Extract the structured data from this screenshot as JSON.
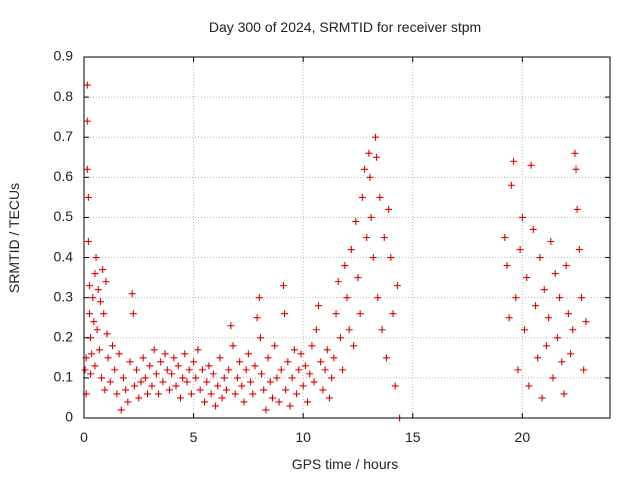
{
  "chart_data": {
    "type": "scatter",
    "title": "Day 300 of 2024, SRMTID for receiver stpm",
    "xlabel": "GPS time / hours",
    "ylabel": "SRMTID / TECUs",
    "xlim": [
      0,
      24
    ],
    "ylim": [
      0,
      0.9
    ],
    "xticks": [
      0,
      5,
      10,
      15,
      20
    ],
    "yticks": [
      0,
      0.1,
      0.2,
      0.3,
      0.4,
      0.5,
      0.6,
      0.7,
      0.8,
      0.9
    ],
    "xtick_labels": [
      "0",
      "5",
      "10",
      "15",
      "20"
    ],
    "ytick_labels": [
      "0",
      "0.1",
      "0.2",
      "0.3",
      "0.4",
      "0.5",
      "0.6",
      "0.7",
      "0.8",
      "0.9"
    ],
    "grid": true,
    "marker": "+",
    "color": "#e00000",
    "series": [
      {
        "name": "SRMTID",
        "points": [
          [
            0.05,
            0.12
          ],
          [
            0.1,
            0.15
          ],
          [
            0.1,
            0.06
          ],
          [
            0.15,
            0.83
          ],
          [
            0.15,
            0.74
          ],
          [
            0.15,
            0.62
          ],
          [
            0.2,
            0.55
          ],
          [
            0.2,
            0.44
          ],
          [
            0.25,
            0.33
          ],
          [
            0.25,
            0.26
          ],
          [
            0.3,
            0.2
          ],
          [
            0.3,
            0.11
          ],
          [
            0.35,
            0.16
          ],
          [
            0.4,
            0.3
          ],
          [
            0.45,
            0.24
          ],
          [
            0.5,
            0.36
          ],
          [
            0.5,
            0.13
          ],
          [
            0.55,
            0.4
          ],
          [
            0.6,
            0.22
          ],
          [
            0.65,
            0.32
          ],
          [
            0.7,
            0.17
          ],
          [
            0.75,
            0.29
          ],
          [
            0.8,
            0.1
          ],
          [
            0.85,
            0.37
          ],
          [
            0.9,
            0.26
          ],
          [
            0.95,
            0.07
          ],
          [
            1.0,
            0.34
          ],
          [
            1.05,
            0.21
          ],
          [
            1.1,
            0.15
          ],
          [
            1.2,
            0.09
          ],
          [
            1.3,
            0.18
          ],
          [
            1.4,
            0.12
          ],
          [
            1.5,
            0.06
          ],
          [
            1.6,
            0.16
          ],
          [
            1.7,
            0.02
          ],
          [
            1.8,
            0.1
          ],
          [
            1.9,
            0.07
          ],
          [
            2.0,
            0.04
          ],
          [
            2.1,
            0.14
          ],
          [
            2.2,
            0.31
          ],
          [
            2.25,
            0.26
          ],
          [
            2.3,
            0.08
          ],
          [
            2.4,
            0.12
          ],
          [
            2.5,
            0.05
          ],
          [
            2.6,
            0.09
          ],
          [
            2.7,
            0.15
          ],
          [
            2.8,
            0.1
          ],
          [
            2.9,
            0.06
          ],
          [
            3.0,
            0.13
          ],
          [
            3.1,
            0.08
          ],
          [
            3.2,
            0.17
          ],
          [
            3.3,
            0.11
          ],
          [
            3.4,
            0.06
          ],
          [
            3.5,
            0.14
          ],
          [
            3.6,
            0.09
          ],
          [
            3.7,
            0.16
          ],
          [
            3.8,
            0.12
          ],
          [
            3.9,
            0.07
          ],
          [
            4.0,
            0.11
          ],
          [
            4.1,
            0.15
          ],
          [
            4.2,
            0.08
          ],
          [
            4.3,
            0.13
          ],
          [
            4.4,
            0.05
          ],
          [
            4.5,
            0.1
          ],
          [
            4.6,
            0.16
          ],
          [
            4.7,
            0.09
          ],
          [
            4.8,
            0.12
          ],
          [
            4.9,
            0.06
          ],
          [
            5.0,
            0.14
          ],
          [
            5.1,
            0.1
          ],
          [
            5.2,
            0.17
          ],
          [
            5.3,
            0.07
          ],
          [
            5.4,
            0.12
          ],
          [
            5.5,
            0.04
          ],
          [
            5.6,
            0.09
          ],
          [
            5.7,
            0.13
          ],
          [
            5.8,
            0.06
          ],
          [
            5.9,
            0.11
          ],
          [
            6.0,
            0.03
          ],
          [
            6.1,
            0.08
          ],
          [
            6.2,
            0.15
          ],
          [
            6.3,
            0.05
          ],
          [
            6.4,
            0.1
          ],
          [
            6.5,
            0.07
          ],
          [
            6.6,
            0.12
          ],
          [
            6.7,
            0.23
          ],
          [
            6.8,
            0.18
          ],
          [
            6.9,
            0.06
          ],
          [
            7.0,
            0.1
          ],
          [
            7.1,
            0.14
          ],
          [
            7.2,
            0.08
          ],
          [
            7.3,
            0.04
          ],
          [
            7.4,
            0.12
          ],
          [
            7.5,
            0.16
          ],
          [
            7.6,
            0.09
          ],
          [
            7.7,
            0.06
          ],
          [
            7.8,
            0.13
          ],
          [
            7.9,
            0.25
          ],
          [
            8.0,
            0.3
          ],
          [
            8.05,
            0.2
          ],
          [
            8.1,
            0.11
          ],
          [
            8.2,
            0.07
          ],
          [
            8.3,
            0.02
          ],
          [
            8.4,
            0.15
          ],
          [
            8.5,
            0.09
          ],
          [
            8.6,
            0.05
          ],
          [
            8.7,
            0.18
          ],
          [
            8.8,
            0.1
          ],
          [
            8.9,
            0.04
          ],
          [
            9.0,
            0.12
          ],
          [
            9.1,
            0.33
          ],
          [
            9.15,
            0.26
          ],
          [
            9.2,
            0.07
          ],
          [
            9.3,
            0.14
          ],
          [
            9.4,
            0.03
          ],
          [
            9.5,
            0.1
          ],
          [
            9.6,
            0.17
          ],
          [
            9.7,
            0.06
          ],
          [
            9.8,
            0.12
          ],
          [
            9.9,
            0.16
          ],
          [
            10.0,
            0.08
          ],
          [
            10.1,
            0.13
          ],
          [
            10.2,
            0.04
          ],
          [
            10.3,
            0.11
          ],
          [
            10.4,
            0.18
          ],
          [
            10.5,
            0.09
          ],
          [
            10.6,
            0.22
          ],
          [
            10.7,
            0.28
          ],
          [
            10.8,
            0.14
          ],
          [
            10.9,
            0.07
          ],
          [
            11.0,
            0.12
          ],
          [
            11.1,
            0.17
          ],
          [
            11.2,
            0.05
          ],
          [
            11.3,
            0.1
          ],
          [
            11.4,
            0.15
          ],
          [
            11.5,
            0.26
          ],
          [
            11.6,
            0.34
          ],
          [
            11.7,
            0.2
          ],
          [
            11.8,
            0.12
          ],
          [
            11.9,
            0.38
          ],
          [
            12.0,
            0.3
          ],
          [
            12.1,
            0.22
          ],
          [
            12.2,
            0.42
          ],
          [
            12.3,
            0.18
          ],
          [
            12.4,
            0.49
          ],
          [
            12.5,
            0.35
          ],
          [
            12.6,
            0.26
          ],
          [
            12.7,
            0.55
          ],
          [
            12.8,
            0.62
          ],
          [
            12.9,
            0.45
          ],
          [
            13.0,
            0.66
          ],
          [
            13.05,
            0.6
          ],
          [
            13.1,
            0.5
          ],
          [
            13.2,
            0.4
          ],
          [
            13.3,
            0.7
          ],
          [
            13.35,
            0.65
          ],
          [
            13.4,
            0.3
          ],
          [
            13.5,
            0.55
          ],
          [
            13.6,
            0.22
          ],
          [
            13.7,
            0.45
          ],
          [
            13.8,
            0.15
          ],
          [
            13.9,
            0.52
          ],
          [
            14.0,
            0.4
          ],
          [
            14.1,
            0.26
          ],
          [
            14.2,
            0.08
          ],
          [
            14.3,
            0.33
          ],
          [
            14.4,
            0.0
          ],
          [
            19.2,
            0.45
          ],
          [
            19.3,
            0.38
          ],
          [
            19.4,
            0.25
          ],
          [
            19.5,
            0.58
          ],
          [
            19.6,
            0.64
          ],
          [
            19.7,
            0.3
          ],
          [
            19.8,
            0.12
          ],
          [
            19.9,
            0.42
          ],
          [
            20.0,
            0.5
          ],
          [
            20.1,
            0.22
          ],
          [
            20.2,
            0.35
          ],
          [
            20.3,
            0.08
          ],
          [
            20.4,
            0.63
          ],
          [
            20.5,
            0.47
          ],
          [
            20.6,
            0.28
          ],
          [
            20.7,
            0.15
          ],
          [
            20.8,
            0.4
          ],
          [
            20.9,
            0.05
          ],
          [
            21.0,
            0.32
          ],
          [
            21.1,
            0.18
          ],
          [
            21.2,
            0.25
          ],
          [
            21.3,
            0.44
          ],
          [
            21.4,
            0.1
          ],
          [
            21.5,
            0.36
          ],
          [
            21.6,
            0.2
          ],
          [
            21.7,
            0.3
          ],
          [
            21.8,
            0.14
          ],
          [
            21.9,
            0.06
          ],
          [
            22.0,
            0.38
          ],
          [
            22.1,
            0.26
          ],
          [
            22.2,
            0.16
          ],
          [
            22.3,
            0.22
          ],
          [
            22.4,
            0.66
          ],
          [
            22.45,
            0.62
          ],
          [
            22.5,
            0.52
          ],
          [
            22.6,
            0.42
          ],
          [
            22.7,
            0.3
          ],
          [
            22.8,
            0.12
          ],
          [
            22.9,
            0.24
          ]
        ]
      }
    ]
  }
}
